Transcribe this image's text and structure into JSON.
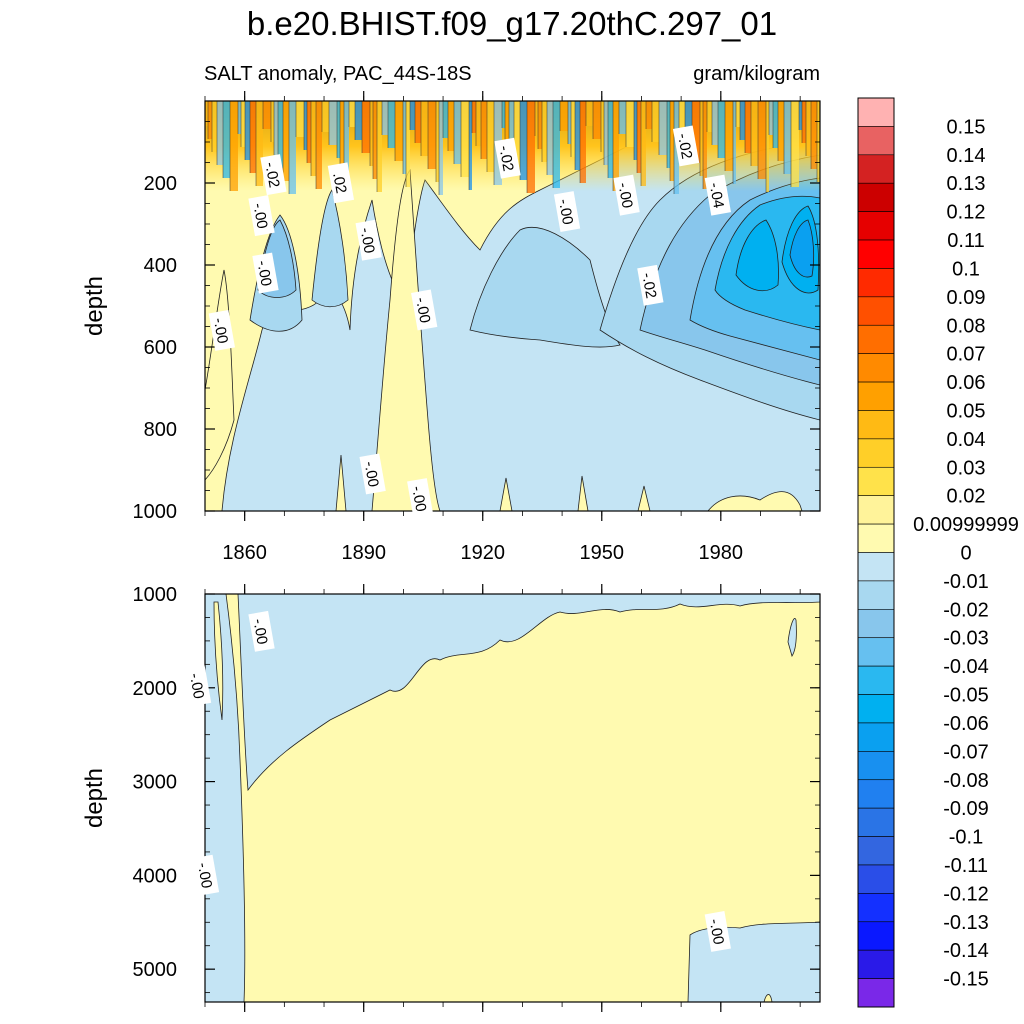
{
  "header": {
    "title": "b.e20.BHIST.f09_g17.20thC.297_01",
    "left_string": "SALT anomaly, PAC_44S-18S",
    "right_string": "gram/kilogram"
  },
  "chart_data": {
    "type": "contour",
    "title": "b.e20.BHIST.f09_g17.20thC.297_01",
    "subtitle": "SALT anomaly, PAC_44S-18S",
    "units": "gram/kilogram",
    "x_ticks": [
      "1860",
      "1890",
      "1920",
      "1950",
      "1980"
    ],
    "xlim": [
      1850,
      2005
    ],
    "panels": [
      {
        "name": "upper",
        "ylabel": "depth",
        "ylim": [
          1000,
          0
        ],
        "y_ticks": [
          "200",
          "400",
          "600",
          "800",
          "1000"
        ],
        "contour_labels": [
          {
            "text": "-.02",
            "x": 1867,
            "y": 180
          },
          {
            "text": ".02",
            "x": 1884,
            "y": 200
          },
          {
            "text": "-.00",
            "x": 1864,
            "y": 280
          },
          {
            "text": "-.00",
            "x": 1865,
            "y": 420
          },
          {
            "text": "-.00",
            "x": 1854,
            "y": 560
          },
          {
            "text": "-.00",
            "x": 1891,
            "y": 340
          },
          {
            "text": "-.00",
            "x": 1905,
            "y": 510
          },
          {
            "text": "-.02",
            "x": 1926,
            "y": 140
          },
          {
            "text": "-.00",
            "x": 1941,
            "y": 270
          },
          {
            "text": "-.00",
            "x": 1956,
            "y": 230
          },
          {
            "text": "-.02",
            "x": 1962,
            "y": 450
          },
          {
            "text": "-.02",
            "x": 1971,
            "y": 110
          },
          {
            "text": "-.04",
            "x": 1979,
            "y": 230
          },
          {
            "text": "-.00",
            "x": 1892,
            "y": 910
          },
          {
            "text": "-.00",
            "x": 1904,
            "y": 970
          }
        ]
      },
      {
        "name": "lower",
        "ylabel": "depth",
        "ylim": [
          5350,
          1000
        ],
        "y_ticks": [
          "1000",
          "2000",
          "3000",
          "4000",
          "5000"
        ],
        "contour_labels": [
          {
            "text": "-.00",
            "x": 1864,
            "y": 1400
          },
          {
            "text": "-.00",
            "x": 1848,
            "y": 1980
          },
          {
            "text": "-.00",
            "x": 1850,
            "y": 4000
          },
          {
            "text": "-.00",
            "x": 1979,
            "y": 4600
          }
        ]
      }
    ],
    "colorbar": {
      "labels": [
        "0.15",
        "0.14",
        "0.13",
        "0.12",
        "0.11",
        "0.1",
        "0.09",
        "0.08",
        "0.07",
        "0.06",
        "0.05",
        "0.04",
        "0.03",
        "0.02",
        "0.00999999",
        "0",
        "-0.01",
        "-0.02",
        "-0.03",
        "-0.04",
        "-0.05",
        "-0.06",
        "-0.07",
        "-0.08",
        "-0.09",
        "-0.1",
        "-0.11",
        "-0.12",
        "-0.13",
        "-0.14",
        "-0.15"
      ],
      "colors": [
        "#ffb2b2",
        "#e86262",
        "#d42222",
        "#cc0000",
        "#e60000",
        "#ff0000",
        "#ff2a00",
        "#ff5000",
        "#ff6e00",
        "#ff8a00",
        "#ffa000",
        "#ffba14",
        "#ffcf28",
        "#ffe24a",
        "#fff39a",
        "#fffab0",
        "#c4e4f4",
        "#a8d8f0",
        "#88c6ec",
        "#66c0f0",
        "#2ab8f0",
        "#00b0f0",
        "#0aa0f0",
        "#1890f0",
        "#2080f0",
        "#2a74e6",
        "#3366e0",
        "#2a4ee8",
        "#1430ff",
        "#0a18ff",
        "#2a1ae8",
        "#7a28e8"
      ]
    },
    "dominant_colors": {
      "near_zero_positive": "#fffab0",
      "near_zero_negative": "#c4e4f4",
      "negative_core": "#2ab8f0",
      "positive_core": "#ffba14"
    }
  }
}
